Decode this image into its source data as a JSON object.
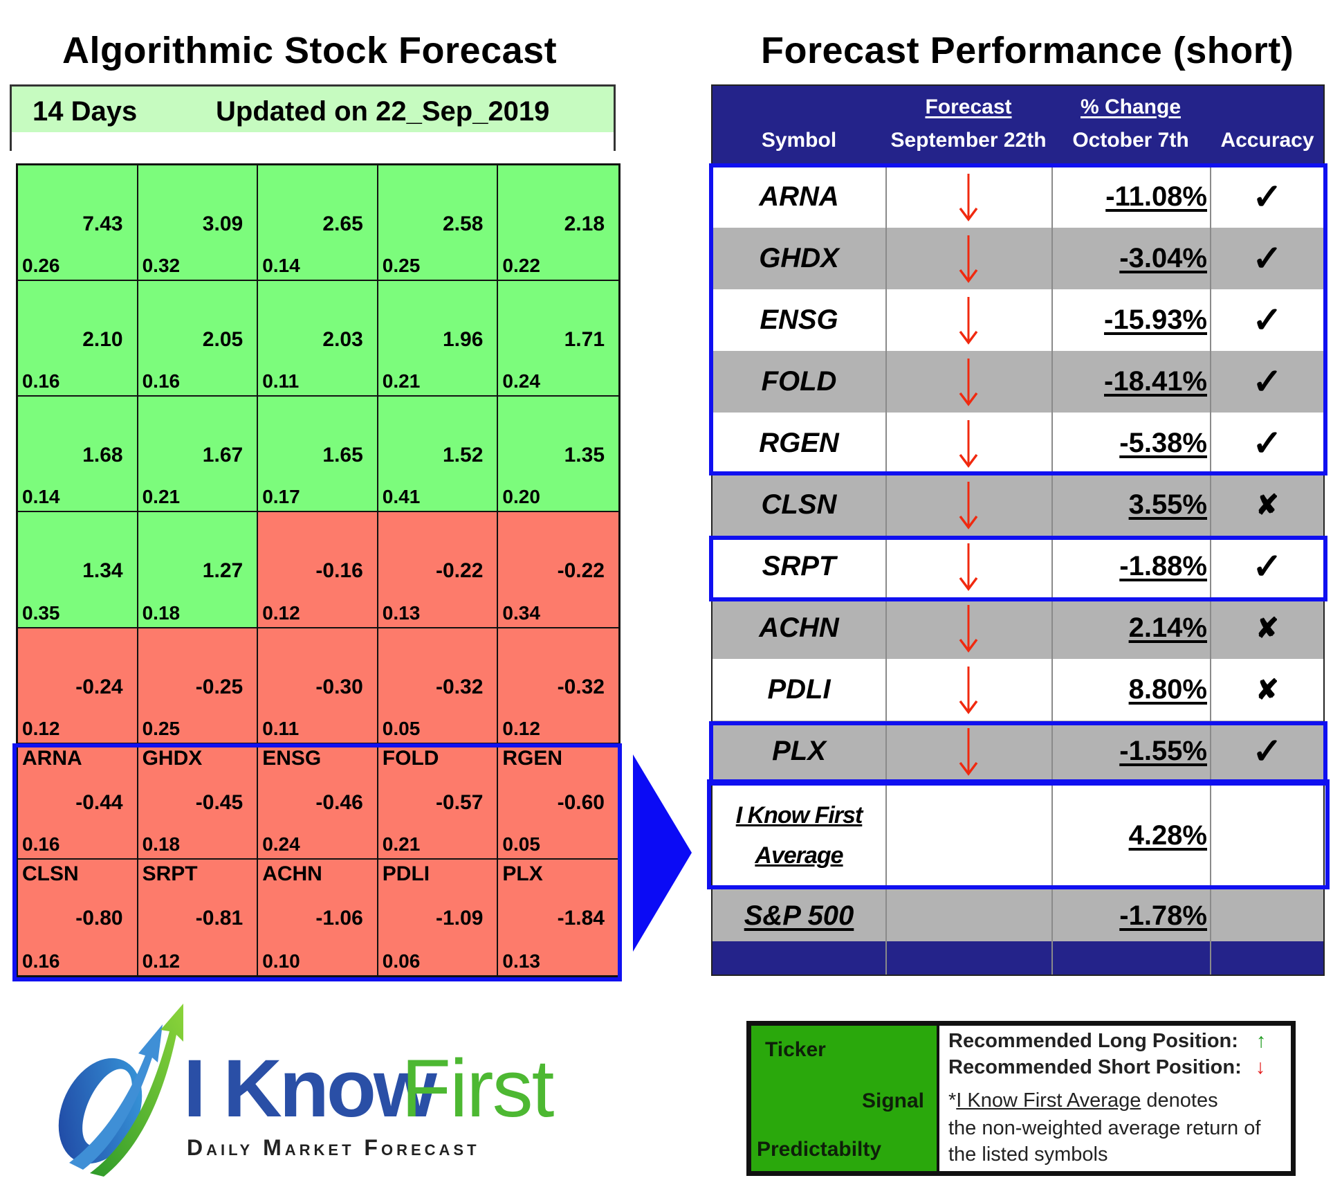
{
  "left_panel": {
    "title": "Algorithmic Stock Forecast",
    "header": {
      "horizon": "14 Days",
      "updated": "Updated on 22_Sep_2019"
    },
    "colors": {
      "positive": "#7cfc7c",
      "negative": "#fd7b6b",
      "highlight": "#1010f0"
    },
    "cells": [
      {
        "ticker": "",
        "signal": "7.43",
        "predictability": "0.26",
        "sign": "pos"
      },
      {
        "ticker": "",
        "signal": "3.09",
        "predictability": "0.32",
        "sign": "pos"
      },
      {
        "ticker": "",
        "signal": "2.65",
        "predictability": "0.14",
        "sign": "pos"
      },
      {
        "ticker": "",
        "signal": "2.58",
        "predictability": "0.25",
        "sign": "pos"
      },
      {
        "ticker": "",
        "signal": "2.18",
        "predictability": "0.22",
        "sign": "pos"
      },
      {
        "ticker": "",
        "signal": "2.10",
        "predictability": "0.16",
        "sign": "pos"
      },
      {
        "ticker": "",
        "signal": "2.05",
        "predictability": "0.16",
        "sign": "pos"
      },
      {
        "ticker": "",
        "signal": "2.03",
        "predictability": "0.11",
        "sign": "pos"
      },
      {
        "ticker": "",
        "signal": "1.96",
        "predictability": "0.21",
        "sign": "pos"
      },
      {
        "ticker": "",
        "signal": "1.71",
        "predictability": "0.24",
        "sign": "pos"
      },
      {
        "ticker": "",
        "signal": "1.68",
        "predictability": "0.14",
        "sign": "pos"
      },
      {
        "ticker": "",
        "signal": "1.67",
        "predictability": "0.21",
        "sign": "pos"
      },
      {
        "ticker": "",
        "signal": "1.65",
        "predictability": "0.17",
        "sign": "pos"
      },
      {
        "ticker": "",
        "signal": "1.52",
        "predictability": "0.41",
        "sign": "pos"
      },
      {
        "ticker": "",
        "signal": "1.35",
        "predictability": "0.20",
        "sign": "pos"
      },
      {
        "ticker": "",
        "signal": "1.34",
        "predictability": "0.35",
        "sign": "pos"
      },
      {
        "ticker": "",
        "signal": "1.27",
        "predictability": "0.18",
        "sign": "pos"
      },
      {
        "ticker": "",
        "signal": "-0.16",
        "predictability": "0.12",
        "sign": "neg"
      },
      {
        "ticker": "",
        "signal": "-0.22",
        "predictability": "0.13",
        "sign": "neg"
      },
      {
        "ticker": "",
        "signal": "-0.22",
        "predictability": "0.34",
        "sign": "neg"
      },
      {
        "ticker": "",
        "signal": "-0.24",
        "predictability": "0.12",
        "sign": "neg"
      },
      {
        "ticker": "",
        "signal": "-0.25",
        "predictability": "0.25",
        "sign": "neg"
      },
      {
        "ticker": "",
        "signal": "-0.30",
        "predictability": "0.11",
        "sign": "neg"
      },
      {
        "ticker": "",
        "signal": "-0.32",
        "predictability": "0.05",
        "sign": "neg"
      },
      {
        "ticker": "",
        "signal": "-0.32",
        "predictability": "0.12",
        "sign": "neg"
      },
      {
        "ticker": "ARNA",
        "signal": "-0.44",
        "predictability": "0.16",
        "sign": "neg"
      },
      {
        "ticker": "GHDX",
        "signal": "-0.45",
        "predictability": "0.18",
        "sign": "neg"
      },
      {
        "ticker": "ENSG",
        "signal": "-0.46",
        "predictability": "0.24",
        "sign": "neg"
      },
      {
        "ticker": "FOLD",
        "signal": "-0.57",
        "predictability": "0.21",
        "sign": "neg"
      },
      {
        "ticker": "RGEN",
        "signal": "-0.60",
        "predictability": "0.05",
        "sign": "neg"
      },
      {
        "ticker": "CLSN",
        "signal": "-0.80",
        "predictability": "0.16",
        "sign": "neg"
      },
      {
        "ticker": "SRPT",
        "signal": "-0.81",
        "predictability": "0.12",
        "sign": "neg"
      },
      {
        "ticker": "ACHN",
        "signal": "-1.06",
        "predictability": "0.10",
        "sign": "neg"
      },
      {
        "ticker": "PDLI",
        "signal": "-1.09",
        "predictability": "0.06",
        "sign": "neg"
      },
      {
        "ticker": "PLX",
        "signal": "-1.84",
        "predictability": "0.13",
        "sign": "neg"
      }
    ]
  },
  "right_panel": {
    "title": "Forecast Performance (short)",
    "columns": {
      "symbol": "Symbol",
      "forecast_top": "Forecast",
      "forecast_bottom": "September 22th",
      "change_top": "% Change",
      "change_bottom": "October 7th",
      "accuracy": "Accuracy"
    },
    "colors": {
      "header_bg": "#24238a",
      "row_gray": "#b3b3b3",
      "arrow_down": "#f0290f",
      "highlight": "#1010f0"
    },
    "rows": [
      {
        "symbol": "ARNA",
        "signal_icon": "arrow-down",
        "change": "-11.08%",
        "accuracy": "✓",
        "correct": true,
        "shade": "white"
      },
      {
        "symbol": "GHDX",
        "signal_icon": "arrow-down",
        "change": "-3.04%",
        "accuracy": "✓",
        "correct": true,
        "shade": "gray"
      },
      {
        "symbol": "ENSG",
        "signal_icon": "arrow-down",
        "change": "-15.93%",
        "accuracy": "✓",
        "correct": true,
        "shade": "white"
      },
      {
        "symbol": "FOLD",
        "signal_icon": "arrow-down",
        "change": "-18.41%",
        "accuracy": "✓",
        "correct": true,
        "shade": "gray"
      },
      {
        "symbol": "RGEN",
        "signal_icon": "arrow-down",
        "change": "-5.38%",
        "accuracy": "✓",
        "correct": true,
        "shade": "white"
      },
      {
        "symbol": "CLSN",
        "signal_icon": "arrow-down",
        "change": "3.55%",
        "accuracy": "✘",
        "correct": false,
        "shade": "gray"
      },
      {
        "symbol": "SRPT",
        "signal_icon": "arrow-down",
        "change": "-1.88%",
        "accuracy": "✓",
        "correct": true,
        "shade": "white"
      },
      {
        "symbol": "ACHN",
        "signal_icon": "arrow-down",
        "change": "2.14%",
        "accuracy": "✘",
        "correct": false,
        "shade": "gray"
      },
      {
        "symbol": "PDLI",
        "signal_icon": "arrow-down",
        "change": "8.80%",
        "accuracy": "✘",
        "correct": false,
        "shade": "white"
      },
      {
        "symbol": "PLX",
        "signal_icon": "arrow-down",
        "change": "-1.55%",
        "accuracy": "✓",
        "correct": true,
        "shade": "gray"
      }
    ],
    "average": {
      "label_line1": "I Know First",
      "label_line2": "Average",
      "change": "4.28%"
    },
    "benchmark": {
      "label": "S&P 500",
      "change": "-1.78%"
    }
  },
  "logo": {
    "word1": "I Know",
    "word2": "First",
    "tagline": "Daily Market Forecast"
  },
  "legend": {
    "ticker": "Ticker",
    "signal": "Signal",
    "predictability": "Predictabilty",
    "long_label": "Recommended Long Position:",
    "long_icon": "↑",
    "short_label": "Recommended Short Position:",
    "short_icon": "↓",
    "note_prefix": "*",
    "note_link": "I Know First Average",
    "note_rest": " denotes",
    "note_line2": "the non-weighted average return of",
    "note_line3": "the listed symbols"
  }
}
